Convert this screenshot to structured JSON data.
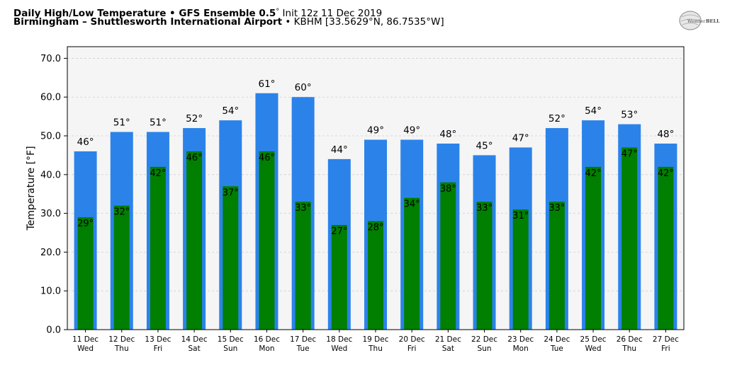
{
  "header": {
    "title_bold": "Daily High/Low Temperature • GFS Ensemble 0.5",
    "title_deg": "°",
    "title_rest": " Init 12z 11 Dec 2019",
    "subtitle_bold": "Birmingham – Shuttlesworth International Airport",
    "subtitle_rest": " • KBHM [33.5629°N, 86.7535°W]"
  },
  "logo": {
    "text_left": "Weather",
    "text_right": "BELL",
    "icon": "weatherbell-globe-logo"
  },
  "colors": {
    "high": "#2b83ea",
    "low": "#007f00",
    "plot_bg": "#f5f5f5",
    "grid": "#d0d0d0"
  },
  "chart_data": {
    "type": "bar",
    "title": "Daily High/Low Temperature • GFS Ensemble 0.5° Init 12z 11 Dec 2019",
    "ylabel": "Temperature [°F]",
    "xlabel": "",
    "ylim": [
      0,
      73
    ],
    "yticks": [
      "0.0",
      "10.0",
      "20.0",
      "30.0",
      "40.0",
      "50.0",
      "60.0",
      "70.0"
    ],
    "ytick_values": [
      0,
      10,
      20,
      30,
      40,
      50,
      60,
      70
    ],
    "grid": true,
    "categories": [
      [
        "11 Dec",
        "Wed"
      ],
      [
        "12 Dec",
        "Thu"
      ],
      [
        "13 Dec",
        "Fri"
      ],
      [
        "14 Dec",
        "Sat"
      ],
      [
        "15 Dec",
        "Sun"
      ],
      [
        "16 Dec",
        "Mon"
      ],
      [
        "17 Dec",
        "Tue"
      ],
      [
        "18 Dec",
        "Wed"
      ],
      [
        "19 Dec",
        "Thu"
      ],
      [
        "20 Dec",
        "Fri"
      ],
      [
        "21 Dec",
        "Sat"
      ],
      [
        "22 Dec",
        "Sun"
      ],
      [
        "23 Dec",
        "Mon"
      ],
      [
        "24 Dec",
        "Tue"
      ],
      [
        "25 Dec",
        "Wed"
      ],
      [
        "26 Dec",
        "Thu"
      ],
      [
        "27 Dec",
        "Fri"
      ]
    ],
    "series": [
      {
        "values": [
          46,
          51,
          51,
          52,
          54,
          61,
          60,
          44,
          49,
          49,
          48,
          45,
          47,
          52,
          54,
          53,
          48
        ],
        "labels": [
          "46°",
          "51°",
          "51°",
          "52°",
          "54°",
          "61°",
          "60°",
          "44°",
          "49°",
          "49°",
          "48°",
          "45°",
          "47°",
          "52°",
          "54°",
          "53°",
          "48°"
        ]
      },
      {
        "values": [
          29,
          32,
          42,
          46,
          37,
          46,
          33,
          27,
          28,
          34,
          38,
          33,
          31,
          33,
          42,
          47,
          42
        ],
        "labels": [
          "29°",
          "32°",
          "42°",
          "46°",
          "37°",
          "46°",
          "33°",
          "27°",
          "28°",
          "34°",
          "38°",
          "33°",
          "31°",
          "33°",
          "42°",
          "47°",
          "42°"
        ]
      }
    ]
  }
}
